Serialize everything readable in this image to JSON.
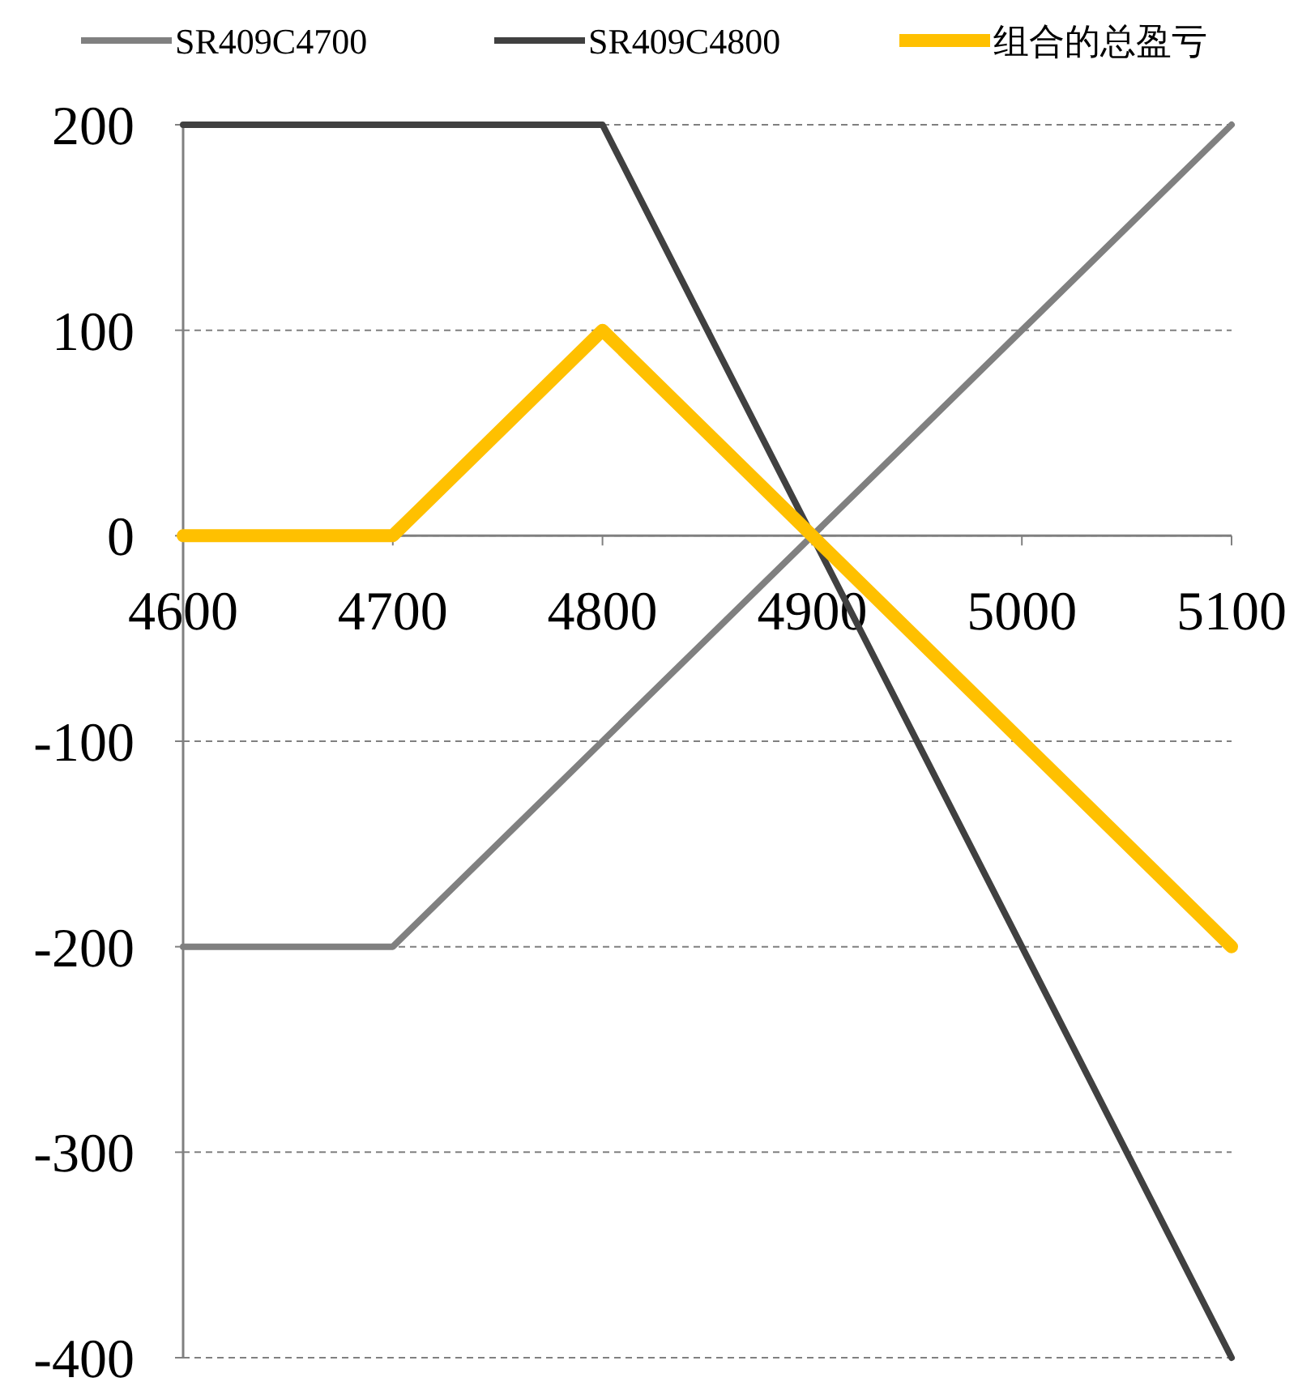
{
  "chart_data": {
    "type": "line",
    "x": [
      4600,
      4700,
      4800,
      4900,
      5000,
      5100
    ],
    "series": [
      {
        "name": "SR409C4700",
        "color": "#808080",
        "values": [
          -200,
          -200,
          -100,
          0,
          100,
          200
        ]
      },
      {
        "name": "SR409C4800",
        "color": "#404040",
        "values": [
          200,
          200,
          200,
          0,
          -200,
          -400
        ]
      },
      {
        "name": "组合的总盈亏",
        "color": "#ffc000",
        "values": [
          0,
          0,
          100,
          0,
          -100,
          -200
        ]
      }
    ],
    "xlim": [
      4600,
      5100
    ],
    "xticks": [
      4600,
      4700,
      4800,
      4900,
      5000,
      5100
    ],
    "ylim": [
      -400,
      200
    ],
    "yticks": [
      -400,
      -300,
      -200,
      -100,
      0,
      100,
      200
    ],
    "grid": "y",
    "legend": "top",
    "marker": "none",
    "line_style": "solid"
  }
}
